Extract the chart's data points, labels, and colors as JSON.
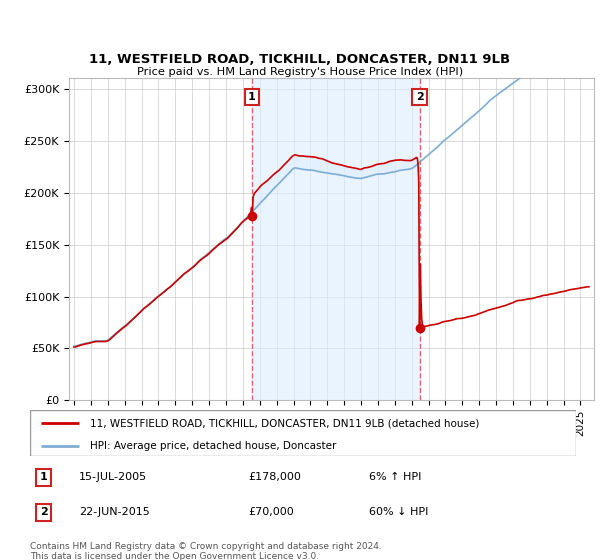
{
  "title": "11, WESTFIELD ROAD, TICKHILL, DONCASTER, DN11 9LB",
  "subtitle": "Price paid vs. HM Land Registry's House Price Index (HPI)",
  "ylim": [
    0,
    310000
  ],
  "yticks": [
    0,
    50000,
    100000,
    150000,
    200000,
    250000,
    300000
  ],
  "ytick_labels": [
    "£0",
    "£50K",
    "£100K",
    "£150K",
    "£200K",
    "£250K",
    "£300K"
  ],
  "sale1_date": 2005.54,
  "sale1_price": 178000,
  "sale2_date": 2015.47,
  "sale2_price": 70000,
  "legend_line1": "11, WESTFIELD ROAD, TICKHILL, DONCASTER, DN11 9LB (detached house)",
  "legend_line2": "HPI: Average price, detached house, Doncaster",
  "footer": "Contains HM Land Registry data © Crown copyright and database right 2024.\nThis data is licensed under the Open Government Licence v3.0.",
  "red_color": "#cc0000",
  "blue_color": "#7eadd4",
  "shade_color": "#ddeeff",
  "vline_color": "#dd6666",
  "xstart": 1995,
  "xend": 2025
}
